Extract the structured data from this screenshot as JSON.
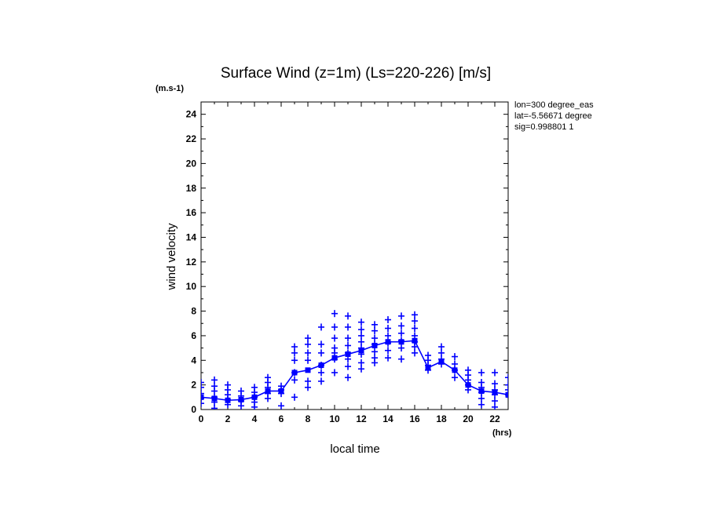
{
  "chart_data": {
    "type": "scatter",
    "title": "Surface Wind (z=1m) (Ls=220-226) [m/s]",
    "ylabel": "wind velocity",
    "y_unit": "(m.s-1)",
    "xlabel": "local time",
    "x_unit": "(hrs)",
    "xlim": [
      0,
      23
    ],
    "ylim": [
      0,
      25
    ],
    "x_ticks": [
      0,
      2,
      4,
      6,
      8,
      10,
      12,
      14,
      16,
      18,
      20,
      22
    ],
    "y_ticks": [
      0,
      2,
      4,
      6,
      8,
      10,
      12,
      14,
      16,
      18,
      20,
      22,
      24
    ],
    "info": [
      "lon=300 degree_eas",
      "lat=-5.56671 degree",
      "sig=0.998801 1"
    ],
    "color": "#0000ff",
    "series": [
      {
        "marker": "line-square",
        "x": [
          0,
          1,
          2,
          3,
          4,
          5,
          6,
          7,
          8,
          9,
          10,
          11,
          12,
          13,
          14,
          15,
          16,
          17,
          18,
          19,
          20,
          21,
          22,
          23
        ],
        "y": [
          1.0,
          0.9,
          0.75,
          0.8,
          1.0,
          1.5,
          1.5,
          3.0,
          3.2,
          3.6,
          4.2,
          4.5,
          4.8,
          5.2,
          5.5,
          5.5,
          5.6,
          3.4,
          3.9,
          3.2,
          2.0,
          1.5,
          1.4,
          1.2
        ]
      },
      {
        "marker": "plus",
        "points": [
          [
            0,
            2.2
          ],
          [
            0,
            1.8
          ],
          [
            0,
            1.3
          ],
          [
            0,
            0.9
          ],
          [
            0,
            0.5
          ],
          [
            1,
            2.4
          ],
          [
            1,
            1.9
          ],
          [
            1,
            1.5
          ],
          [
            1,
            1.0
          ],
          [
            1,
            0.6
          ],
          [
            1,
            0.1
          ],
          [
            2,
            2.0
          ],
          [
            2,
            1.6
          ],
          [
            2,
            1.2
          ],
          [
            2,
            0.8
          ],
          [
            2,
            0.4
          ],
          [
            3,
            1.5
          ],
          [
            3,
            1.1
          ],
          [
            3,
            0.7
          ],
          [
            3,
            0.3
          ],
          [
            4,
            1.8
          ],
          [
            4,
            1.4
          ],
          [
            4,
            1.0
          ],
          [
            4,
            0.6
          ],
          [
            4,
            0.2
          ],
          [
            5,
            2.6
          ],
          [
            5,
            2.2
          ],
          [
            5,
            1.8
          ],
          [
            5,
            1.3
          ],
          [
            5,
            0.9
          ],
          [
            6,
            1.9
          ],
          [
            6,
            1.6
          ],
          [
            6,
            1.3
          ],
          [
            6,
            0.3
          ],
          [
            7,
            5.1
          ],
          [
            7,
            4.6
          ],
          [
            7,
            4.0
          ],
          [
            7,
            3.0
          ],
          [
            7,
            2.4
          ],
          [
            7,
            1.0
          ],
          [
            8,
            5.8
          ],
          [
            8,
            5.3
          ],
          [
            8,
            4.6
          ],
          [
            8,
            4.0
          ],
          [
            8,
            2.3
          ],
          [
            8,
            1.8
          ],
          [
            9,
            6.7
          ],
          [
            9,
            5.3
          ],
          [
            9,
            4.6
          ],
          [
            9,
            3.6
          ],
          [
            9,
            3.0
          ],
          [
            9,
            2.3
          ],
          [
            10,
            7.8
          ],
          [
            10,
            6.7
          ],
          [
            10,
            5.8
          ],
          [
            10,
            5.0
          ],
          [
            10,
            4.6
          ],
          [
            10,
            4.1
          ],
          [
            10,
            3.0
          ],
          [
            11,
            7.6
          ],
          [
            11,
            6.7
          ],
          [
            11,
            5.8
          ],
          [
            11,
            5.2
          ],
          [
            11,
            4.6
          ],
          [
            11,
            4.1
          ],
          [
            11,
            3.5
          ],
          [
            11,
            2.6
          ],
          [
            12,
            7.1
          ],
          [
            12,
            6.5
          ],
          [
            12,
            6.0
          ],
          [
            12,
            5.5
          ],
          [
            12,
            5.0
          ],
          [
            12,
            4.5
          ],
          [
            12,
            3.8
          ],
          [
            12,
            3.3
          ],
          [
            13,
            6.9
          ],
          [
            13,
            6.4
          ],
          [
            13,
            5.8
          ],
          [
            13,
            5.3
          ],
          [
            13,
            4.7
          ],
          [
            13,
            4.2
          ],
          [
            13,
            3.8
          ],
          [
            14,
            7.3
          ],
          [
            14,
            6.6
          ],
          [
            14,
            6.0
          ],
          [
            14,
            5.4
          ],
          [
            14,
            4.8
          ],
          [
            14,
            4.2
          ],
          [
            15,
            7.6
          ],
          [
            15,
            6.8
          ],
          [
            15,
            6.2
          ],
          [
            15,
            5.6
          ],
          [
            15,
            5.0
          ],
          [
            15,
            4.1
          ],
          [
            16,
            7.7
          ],
          [
            16,
            7.2
          ],
          [
            16,
            6.6
          ],
          [
            16,
            6.0
          ],
          [
            16,
            5.5
          ],
          [
            16,
            5.1
          ],
          [
            16,
            4.6
          ],
          [
            17,
            4.4
          ],
          [
            17,
            4.0
          ],
          [
            17,
            3.6
          ],
          [
            17,
            3.2
          ],
          [
            18,
            5.1
          ],
          [
            18,
            4.6
          ],
          [
            18,
            4.1
          ],
          [
            18,
            3.7
          ],
          [
            19,
            4.3
          ],
          [
            19,
            3.7
          ],
          [
            19,
            3.2
          ],
          [
            19,
            2.6
          ],
          [
            20,
            3.2
          ],
          [
            20,
            2.8
          ],
          [
            20,
            2.4
          ],
          [
            20,
            2.0
          ],
          [
            20,
            1.6
          ],
          [
            21,
            3.0
          ],
          [
            21,
            2.2
          ],
          [
            21,
            1.8
          ],
          [
            21,
            1.4
          ],
          [
            21,
            0.9
          ],
          [
            21,
            0.4
          ],
          [
            22,
            3.0
          ],
          [
            22,
            2.1
          ],
          [
            22,
            1.6
          ],
          [
            22,
            1.2
          ],
          [
            22,
            0.7
          ],
          [
            22,
            0.2
          ],
          [
            23,
            2.6
          ],
          [
            23,
            2.0
          ],
          [
            23,
            1.6
          ],
          [
            23,
            1.2
          ]
        ]
      }
    ]
  }
}
